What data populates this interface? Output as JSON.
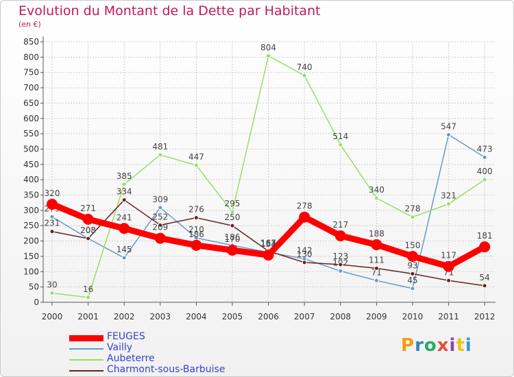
{
  "page": {
    "title": "Evolution du Montant de la Dette par Habitant",
    "subtitle": "(en €)",
    "logo_text": "Proxiti",
    "logo_colors": [
      "#f39c12",
      "#2e86c1",
      "#27ae60",
      "#e74c3c",
      "#8e44ad",
      "#f1c40f",
      "#3498db"
    ]
  },
  "chart_data": {
    "type": "line",
    "title": "Evolution du Montant de la Dette par Habitant",
    "subtitle": "(en €)",
    "xlabel": "",
    "ylabel": "",
    "x": [
      "2000",
      "2001",
      "2002",
      "2003",
      "2004",
      "2005",
      "2006",
      "2007",
      "2008",
      "2009",
      "2010",
      "2011",
      "2012"
    ],
    "ylim": [
      0,
      850
    ],
    "yticks": [
      "0",
      "50",
      "100",
      "150",
      "200",
      "250",
      "300",
      "350",
      "400",
      "450",
      "500",
      "550",
      "600",
      "650",
      "700",
      "750",
      "800",
      "850"
    ],
    "grid": true,
    "legend": "bottom-left",
    "series": [
      {
        "name": "FEUGES",
        "color": "#ff0000",
        "values": [
          320,
          271,
          241,
          209,
          186,
          170,
          154,
          278,
          217,
          188,
          150,
          117,
          181
        ]
      },
      {
        "name": "Vailly",
        "color": "#6699cc",
        "values": [
          279,
          208,
          145,
          309,
          210,
          186,
          163,
          142,
          102,
          71,
          45,
          547,
          473
        ]
      },
      {
        "name": "Aubeterre",
        "color": "#99dd66",
        "values": [
          30,
          16,
          385,
          481,
          447,
          295,
          804,
          740,
          514,
          340,
          278,
          321,
          400
        ]
      },
      {
        "name": "Charmont-sous-Barbuise",
        "color": "#6b1f1f",
        "values": [
          231,
          208,
          334,
          252,
          276,
          250,
          167,
          130,
          123,
          111,
          93,
          71,
          54
        ]
      }
    ]
  }
}
